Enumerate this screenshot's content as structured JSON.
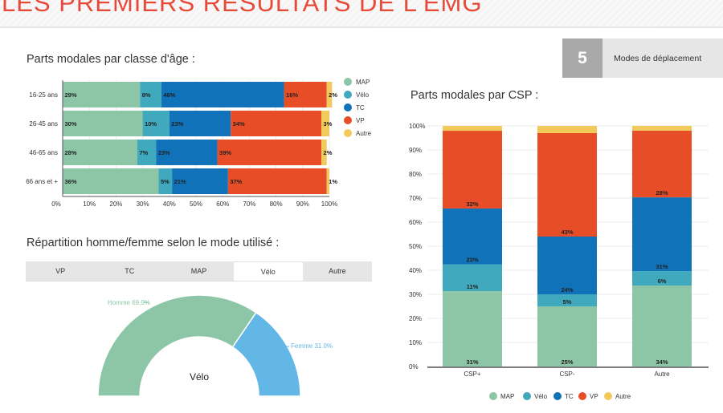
{
  "header": {
    "title": "LES PREMIERS RÉSULTATS DE L'EMG"
  },
  "badge": {
    "number": "5",
    "label": "Modes de déplacement"
  },
  "colors": {
    "MAP": "#8dc6a7",
    "Velo": "#41a9bd",
    "TC": "#1072b8",
    "VP": "#e74e27",
    "Autre": "#f2c95b",
    "Femme": "#63b7e6",
    "Homme": "#8dc6a7"
  },
  "age_chart_title": "Parts modales par classe d'âge :",
  "csp_chart_title": "Parts modales par CSP :",
  "gender_chart_title": "Répartition homme/femme selon le mode utilisé :",
  "tabs": [
    {
      "label": "VP",
      "active": false
    },
    {
      "label": "TC",
      "active": false
    },
    {
      "label": "MAP",
      "active": false
    },
    {
      "label": "Vélo",
      "active": true
    },
    {
      "label": "Autre",
      "active": false
    }
  ],
  "chart_data": [
    {
      "type": "bar",
      "orientation": "horizontal",
      "stacked": true,
      "title": "Parts modales par classe d'âge :",
      "categories": [
        "16-25 ans",
        "26-45 ans",
        "46-65 ans",
        "66 ans et +"
      ],
      "series": [
        {
          "name": "MAP",
          "values": [
            29,
            30,
            28,
            36
          ],
          "labels": [
            "29%",
            "30%",
            "28%",
            "36%"
          ]
        },
        {
          "name": "Vélo",
          "values": [
            8,
            10,
            7,
            5
          ],
          "labels": [
            "8%",
            "10%",
            "7%",
            "5%"
          ]
        },
        {
          "name": "TC",
          "values": [
            46,
            23,
            23,
            21
          ],
          "labels": [
            "46%",
            "23%",
            "23%",
            "21%"
          ]
        },
        {
          "name": "VP",
          "values": [
            16,
            34,
            39,
            37
          ],
          "labels": [
            "16%",
            "34%",
            "39%",
            "37%"
          ]
        },
        {
          "name": "Autre",
          "values": [
            2,
            3,
            2,
            1
          ],
          "labels": [
            "2%",
            "3%",
            "2%",
            "1%"
          ]
        }
      ],
      "xticks": [
        "0%",
        "10%",
        "20%",
        "30%",
        "40%",
        "50%",
        "60%",
        "70%",
        "80%",
        "90%",
        "100%"
      ],
      "xlim": [
        0,
        100
      ],
      "legend": "right"
    },
    {
      "type": "bar",
      "orientation": "vertical",
      "stacked": true,
      "title": "Parts modales par CSP :",
      "categories": [
        "CSP+",
        "CSP-",
        "Autre"
      ],
      "series": [
        {
          "name": "MAP",
          "values": [
            31,
            25,
            34
          ],
          "labels": [
            "31%",
            "25%",
            "34%"
          ]
        },
        {
          "name": "Vélo",
          "values": [
            11,
            5,
            6
          ],
          "labels": [
            "11%",
            "5%",
            "6%"
          ]
        },
        {
          "name": "TC",
          "values": [
            23,
            24,
            31
          ],
          "labels": [
            "23%",
            "24%",
            "31%"
          ]
        },
        {
          "name": "VP",
          "values": [
            32,
            43,
            28
          ],
          "labels": [
            "32%",
            "43%",
            "28%"
          ]
        },
        {
          "name": "Autre",
          "values": [
            2,
            3,
            2
          ],
          "labels": [
            "",
            "",
            ""
          ]
        }
      ],
      "yticks": [
        "0%",
        "10%",
        "20%",
        "30%",
        "40%",
        "50%",
        "60%",
        "70%",
        "80%",
        "90%",
        "100%"
      ],
      "ylim": [
        0,
        100
      ],
      "legend": "bottom"
    },
    {
      "type": "pie",
      "variant": "half-donut",
      "title": "Répartition homme/femme selon le mode utilisé :",
      "center_label": "Vélo",
      "slices": [
        {
          "name": "Homme",
          "value": 69.0,
          "label": "Homme 69.0%"
        },
        {
          "name": "Femme",
          "value": 31.0,
          "label": "Femme 31.0%"
        }
      ]
    }
  ]
}
